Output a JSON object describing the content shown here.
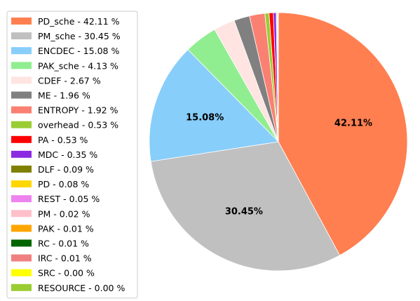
{
  "chart_data": {
    "type": "pie",
    "start_angle_deg": 90,
    "direction": "clockwise",
    "legend_position": "left",
    "slices": [
      {
        "name": "PD_sche",
        "value": 42.11,
        "legend": "PD_sche - 42.11 %",
        "label": "42.11%",
        "color": "#FF7F50"
      },
      {
        "name": "PM_sche",
        "value": 30.45,
        "legend": "PM_sche - 30.45 %",
        "label": "30.45%",
        "color": "#C0C0C0"
      },
      {
        "name": "ENCDEC",
        "value": 15.08,
        "legend": "ENCDEC - 15.08 %",
        "label": "15.08%",
        "color": "#87CEFA"
      },
      {
        "name": "PAK_sche",
        "value": 4.13,
        "legend": "PAK_sche - 4.13 %",
        "label": "",
        "color": "#90EE90"
      },
      {
        "name": "CDEF",
        "value": 2.67,
        "legend": "CDEF - 2.67 %",
        "label": "",
        "color": "#FFE4E1"
      },
      {
        "name": "ME",
        "value": 1.96,
        "legend": "ME - 1.96 %",
        "label": "",
        "color": "#808080"
      },
      {
        "name": "ENTROPY",
        "value": 1.92,
        "legend": "ENTROPY - 1.92 %",
        "label": "",
        "color": "#FA8072"
      },
      {
        "name": "overhead",
        "value": 0.53,
        "legend": "overhead - 0.53 %",
        "label": "",
        "color": "#9ACD32"
      },
      {
        "name": "PA",
        "value": 0.53,
        "legend": "PA - 0.53 %",
        "label": "",
        "color": "#FF0000"
      },
      {
        "name": "MDC",
        "value": 0.35,
        "legend": "MDC - 0.35 %",
        "label": "",
        "color": "#8A2BE2"
      },
      {
        "name": "DLF",
        "value": 0.09,
        "legend": "DLF - 0.09 %",
        "label": "",
        "color": "#808000"
      },
      {
        "name": "PD",
        "value": 0.08,
        "legend": "PD - 0.08 %",
        "label": "",
        "color": "#FFD700"
      },
      {
        "name": "REST",
        "value": 0.05,
        "legend": "REST - 0.05 %",
        "label": "",
        "color": "#EE82EE"
      },
      {
        "name": "PM",
        "value": 0.02,
        "legend": "PM - 0.02 %",
        "label": "",
        "color": "#FFC0CB"
      },
      {
        "name": "PAK",
        "value": 0.01,
        "legend": "PAK - 0.01 %",
        "label": "",
        "color": "#FFA500"
      },
      {
        "name": "RC",
        "value": 0.01,
        "legend": "RC - 0.01 %",
        "label": "",
        "color": "#006400"
      },
      {
        "name": "IRC",
        "value": 0.01,
        "legend": "IRC - 0.01 %",
        "label": "",
        "color": "#F08080"
      },
      {
        "name": "SRC",
        "value": 0.0,
        "legend": "SRC - 0.00 %",
        "label": "",
        "color": "#FFFF00"
      },
      {
        "name": "RESOURCE",
        "value": 0.0,
        "legend": "RESOURCE - 0.00 %",
        "label": "",
        "color": "#9ACD32"
      }
    ]
  }
}
